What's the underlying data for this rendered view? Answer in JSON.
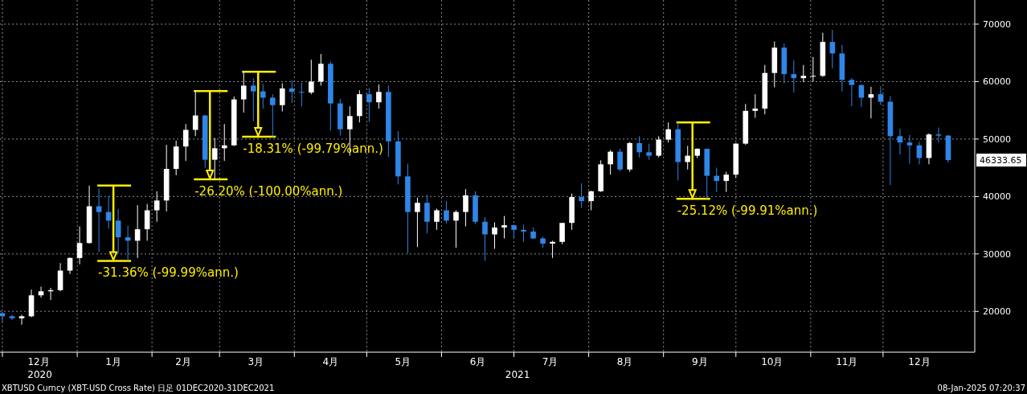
{
  "chart_data": {
    "type": "candlestick",
    "grid": true,
    "colors": [
      "#2f86e8",
      "#2f86e8",
      "#ffffff",
      "#ffffff",
      "#ffffff",
      "#ffffff",
      "#ffffff",
      "#ffffff",
      "#ffffff",
      "#ffffff",
      "#2f86e8",
      "#2f86e8",
      "#2f86e8",
      "#2f86e8",
      "#ffffff",
      "#ffffff",
      "#ffffff",
      "#ffffff",
      "#ffffff",
      "#ffffff",
      "#ffffff",
      "#2f86e8",
      "#ffffff",
      "#ffffff",
      "#ffffff",
      "#ffffff",
      "#2f86e8",
      "#2f86e8",
      "#2f86e8",
      "#ffffff",
      "#2f86e8",
      "#2f86e8",
      "#ffffff",
      "#ffffff",
      "#2f86e8",
      "#2f86e8",
      "#ffffff",
      "#ffffff",
      "#2f86e8",
      "#ffffff",
      "#2f86e8",
      "#2f86e8",
      "#2f86e8",
      "#ffffff",
      "#2f86e8",
      "#ffffff",
      "#2f86e8",
      "#ffffff",
      "#ffffff",
      "#2f86e8",
      "#2f86e8",
      "#ffffff",
      "#ffffff",
      "#2f86e8",
      "#2f86e8",
      "#2f86e8",
      "#2f86e8",
      "#ffffff",
      "#ffffff",
      "#ffffff",
      "#2f86e8",
      "#ffffff",
      "#ffffff",
      "#ffffff",
      "#2f86e8",
      "#ffffff",
      "#2f86e8",
      "#2f86e8",
      "#ffffff",
      "#ffffff",
      "#2f86e8",
      "#ffffff",
      "#ffffff",
      "#2f86e8",
      "#2f86e8",
      "#ffffff",
      "#ffffff",
      "#ffffff",
      "#ffffff",
      "#ffffff",
      "#ffffff",
      "#2f86e8",
      "#2f86e8",
      "#ffffff",
      "#ffffff",
      "#ffffff",
      "#2f86e8",
      "#2f86e8",
      "#2f86e8",
      "#2f86e8",
      "#ffffff",
      "#2f86e8",
      "#2f86e8",
      "#2f86e8",
      "#2f86e8",
      "#2f86e8",
      "#ffffff",
      "#2f86e8",
      "#2f86e8"
    ],
    "xlim": [
      "2020-11-30",
      "2022-01-08"
    ],
    "ylim": [
      12900,
      74200
    ],
    "yticks": [
      20000,
      30000,
      40000,
      50000,
      60000,
      70000
    ],
    "xticks": [
      {
        "value": "2020-12-01",
        "label": null
      },
      {
        "value": "2020-12-16",
        "label": "12月"
      },
      {
        "value": "2021-01-01",
        "label": null
      },
      {
        "value": "2021-01-16",
        "label": "1月"
      },
      {
        "value": "2021-02-01",
        "label": null
      },
      {
        "value": "2021-02-14",
        "label": "2月"
      },
      {
        "value": "2021-03-01",
        "label": null
      },
      {
        "value": "2021-03-16",
        "label": "3月"
      },
      {
        "value": "2021-04-01",
        "label": null
      },
      {
        "value": "2021-04-16",
        "label": "4月"
      },
      {
        "value": "2021-05-01",
        "label": null
      },
      {
        "value": "2021-05-16",
        "label": "5月"
      },
      {
        "value": "2021-06-01",
        "label": null
      },
      {
        "value": "2021-06-16",
        "label": "6月"
      },
      {
        "value": "2021-07-01",
        "label": null
      },
      {
        "value": "2021-07-16",
        "label": "7月"
      },
      {
        "value": "2021-08-01",
        "label": null
      },
      {
        "value": "2021-08-16",
        "label": "8月"
      },
      {
        "value": "2021-09-01",
        "label": null
      },
      {
        "value": "2021-09-16",
        "label": "9月"
      },
      {
        "value": "2021-10-01",
        "label": null
      },
      {
        "value": "2021-10-16",
        "label": "10月"
      },
      {
        "value": "2021-11-01",
        "label": null
      },
      {
        "value": "2021-11-16",
        "label": "11月"
      },
      {
        "value": "2021-12-01",
        "label": null
      },
      {
        "value": "2021-12-16",
        "label": "12月"
      }
    ],
    "x": [
      "2020-12-01",
      "2020-12-05",
      "2020-12-09",
      "2020-12-13",
      "2020-12-17",
      "2020-12-21",
      "2020-12-25",
      "2020-12-29",
      "2021-01-02",
      "2021-01-06",
      "2021-01-10",
      "2021-01-14",
      "2021-01-18",
      "2021-01-22",
      "2021-01-26",
      "2021-01-30",
      "2021-02-03",
      "2021-02-07",
      "2021-02-11",
      "2021-02-15",
      "2021-02-19",
      "2021-02-23",
      "2021-02-27",
      "2021-03-03",
      "2021-03-07",
      "2021-03-11",
      "2021-03-15",
      "2021-03-19",
      "2021-03-23",
      "2021-03-27",
      "2021-03-31",
      "2021-04-04",
      "2021-04-08",
      "2021-04-12",
      "2021-04-16",
      "2021-04-20",
      "2021-04-24",
      "2021-04-28",
      "2021-05-02",
      "2021-05-06",
      "2021-05-10",
      "2021-05-14",
      "2021-05-18",
      "2021-05-22",
      "2021-05-26",
      "2021-05-30",
      "2021-06-03",
      "2021-06-07",
      "2021-06-11",
      "2021-06-15",
      "2021-06-19",
      "2021-06-23",
      "2021-06-27",
      "2021-07-01",
      "2021-07-05",
      "2021-07-09",
      "2021-07-13",
      "2021-07-17",
      "2021-07-21",
      "2021-07-25",
      "2021-07-29",
      "2021-08-02",
      "2021-08-06",
      "2021-08-10",
      "2021-08-14",
      "2021-08-18",
      "2021-08-22",
      "2021-08-26",
      "2021-08-30",
      "2021-09-03",
      "2021-09-07",
      "2021-09-11",
      "2021-09-15",
      "2021-09-19",
      "2021-09-23",
      "2021-09-27",
      "2021-10-01",
      "2021-10-05",
      "2021-10-09",
      "2021-10-13",
      "2021-10-17",
      "2021-10-21",
      "2021-10-25",
      "2021-10-29",
      "2021-11-02",
      "2021-11-06",
      "2021-11-10",
      "2021-11-14",
      "2021-11-18",
      "2021-11-22",
      "2021-11-26",
      "2021-11-30",
      "2021-12-04",
      "2021-12-08",
      "2021-12-12",
      "2021-12-16",
      "2021-12-20",
      "2021-12-24",
      "2021-12-28"
    ],
    "ohlc": [
      [
        19700,
        19900,
        18200,
        19150
      ],
      [
        19150,
        19400,
        18500,
        18800
      ],
      [
        18800,
        19400,
        17700,
        19150
      ],
      [
        19150,
        23800,
        19000,
        22800
      ],
      [
        22800,
        24300,
        22400,
        23500
      ],
      [
        23500,
        24100,
        22000,
        23700
      ],
      [
        23700,
        28400,
        23500,
        27100
      ],
      [
        27100,
        29400,
        26500,
        29300
      ],
      [
        29300,
        34800,
        28200,
        31900
      ],
      [
        31900,
        41900,
        31800,
        38300
      ],
      [
        38300,
        41400,
        30300,
        37300
      ],
      [
        37300,
        40100,
        34400,
        35800
      ],
      [
        35800,
        37800,
        30100,
        32900
      ],
      [
        32900,
        34900,
        28800,
        32300
      ],
      [
        32300,
        38500,
        29300,
        34300
      ],
      [
        34300,
        38700,
        32300,
        37600
      ],
      [
        37600,
        40900,
        35600,
        39300
      ],
      [
        39300,
        49000,
        37400,
        44800
      ],
      [
        44800,
        49700,
        43700,
        48700
      ],
      [
        48700,
        52600,
        46200,
        51600
      ],
      [
        51600,
        58350,
        50500,
        54100
      ],
      [
        54100,
        54200,
        45000,
        46400
      ],
      [
        46400,
        50200,
        43000,
        48400
      ],
      [
        48400,
        52600,
        46200,
        48900
      ],
      [
        48900,
        57400,
        48800,
        56900
      ],
      [
        56900,
        61700,
        54600,
        59300
      ],
      [
        59300,
        60600,
        53100,
        58300
      ],
      [
        58300,
        59600,
        55300,
        57200
      ],
      [
        57200,
        57800,
        50400,
        55900
      ],
      [
        55900,
        59700,
        54800,
        58800
      ],
      [
        58800,
        60200,
        56300,
        58200
      ],
      [
        58200,
        59800,
        55700,
        58100
      ],
      [
        58100,
        63800,
        57800,
        60000
      ],
      [
        60000,
        64800,
        59300,
        63100
      ],
      [
        63100,
        63500,
        51500,
        56200
      ],
      [
        56200,
        57000,
        50600,
        51700
      ],
      [
        51700,
        55700,
        47100,
        54000
      ],
      [
        54000,
        58500,
        52900,
        57800
      ],
      [
        57800,
        58900,
        53000,
        56400
      ],
      [
        56400,
        59500,
        55300,
        58200
      ],
      [
        58200,
        59300,
        46900,
        49600
      ],
      [
        49600,
        51400,
        42100,
        43500
      ],
      [
        43500,
        45700,
        30100,
        37300
      ],
      [
        37300,
        39800,
        31200,
        38900
      ],
      [
        38900,
        40300,
        33600,
        35600
      ],
      [
        35600,
        37900,
        34200,
        37600
      ],
      [
        37600,
        39200,
        35300,
        35800
      ],
      [
        35800,
        37600,
        31100,
        37300
      ],
      [
        37300,
        41300,
        34800,
        40200
      ],
      [
        40200,
        40900,
        35200,
        35600
      ],
      [
        35600,
        36400,
        28800,
        33400
      ],
      [
        33400,
        35500,
        30900,
        34600
      ],
      [
        34600,
        36600,
        32700,
        35000
      ],
      [
        35000,
        35100,
        32700,
        34200
      ],
      [
        34200,
        35100,
        32100,
        33900
      ],
      [
        33900,
        34600,
        32600,
        32700
      ],
      [
        32700,
        33000,
        31100,
        31800
      ],
      [
        31800,
        32300,
        29300,
        32100
      ],
      [
        32100,
        35400,
        31700,
        35400
      ],
      [
        35400,
        40500,
        34200,
        39900
      ],
      [
        39900,
        42300,
        38000,
        39200
      ],
      [
        39200,
        41000,
        37600,
        40900
      ],
      [
        40900,
        46300,
        40800,
        45600
      ],
      [
        45600,
        48100,
        43800,
        47800
      ],
      [
        47800,
        48300,
        44400,
        44700
      ],
      [
        44700,
        49500,
        44300,
        49300
      ],
      [
        49300,
        50500,
        46800,
        47700
      ],
      [
        47700,
        49200,
        46400,
        47100
      ],
      [
        47100,
        50500,
        46800,
        49900
      ],
      [
        49900,
        52900,
        49400,
        51700
      ],
      [
        51700,
        52900,
        42800,
        46000
      ],
      [
        46000,
        48800,
        44700,
        47100
      ],
      [
        47100,
        48400,
        46700,
        48300
      ],
      [
        48300,
        48300,
        39600,
        43600
      ],
      [
        43600,
        45000,
        40800,
        42700
      ],
      [
        42700,
        44300,
        40800,
        43800
      ],
      [
        43800,
        49300,
        43300,
        49200
      ],
      [
        49200,
        56100,
        49000,
        54900
      ],
      [
        54900,
        57800,
        53700,
        55300
      ],
      [
        55300,
        62900,
        54300,
        61500
      ],
      [
        61500,
        67000,
        59000,
        65900
      ],
      [
        65900,
        66600,
        59700,
        61300
      ],
      [
        61300,
        63700,
        58100,
        60600
      ],
      [
        60600,
        62900,
        59900,
        61000
      ],
      [
        61000,
        64300,
        60000,
        61000
      ],
      [
        61000,
        68500,
        60800,
        66900
      ],
      [
        66900,
        69000,
        62300,
        64900
      ],
      [
        64900,
        66400,
        58300,
        60300
      ],
      [
        60300,
        60600,
        55700,
        59400
      ],
      [
        59400,
        59500,
        55600,
        57200
      ],
      [
        57200,
        59100,
        53600,
        57800
      ],
      [
        57800,
        59200,
        55900,
        56500
      ],
      [
        56500,
        57500,
        42000,
        50500
      ],
      [
        50500,
        51800,
        47300,
        49400
      ],
      [
        49400,
        50700,
        45700,
        48900
      ],
      [
        48900,
        49500,
        45600,
        46700
      ],
      [
        46700,
        51000,
        45600,
        50800
      ],
      [
        50800,
        52000,
        49400,
        50600
      ],
      [
        50600,
        50700,
        45900,
        46333.65
      ]
    ],
    "annotations": [
      "-31.36% (-99.99%ann.)",
      "-26.20% (-100.00%ann.)",
      "-18.31% (-99.79%ann.)",
      "-25.12% (-99.91%ann.)",
      "XBTUSD Curncy (XBT-USD Cross Rate)  日足 01DEC2020-31DEC2021",
      "08-Jan-2025 07:20:37",
      "46333.65",
      "2020",
      "2021"
    ]
  }
}
